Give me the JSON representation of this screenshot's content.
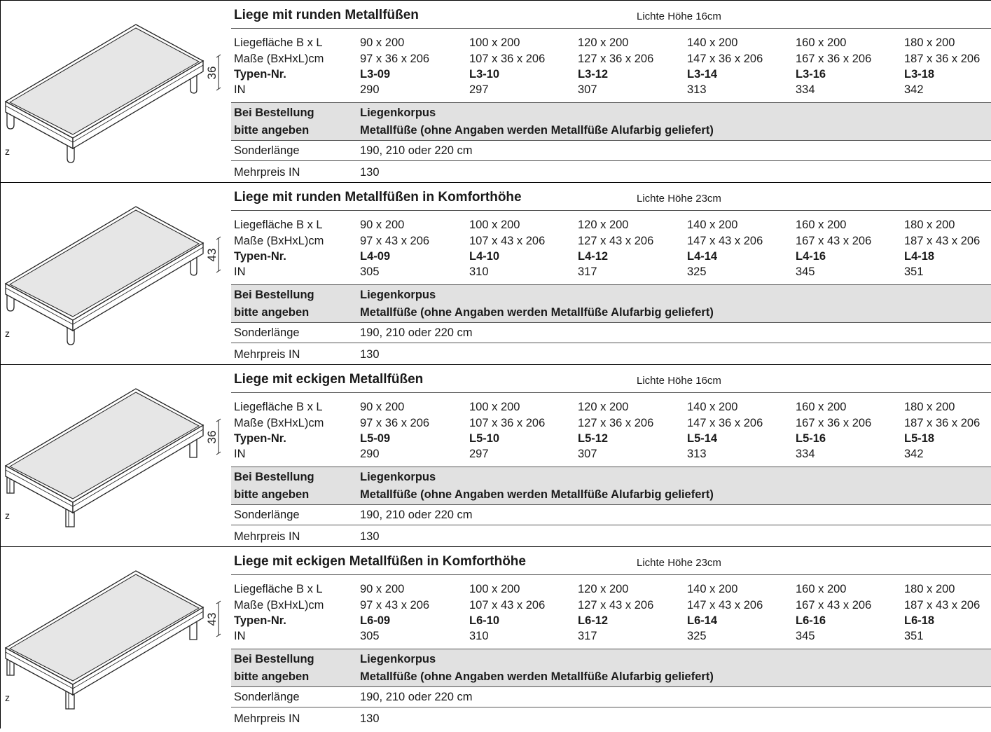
{
  "labels": {
    "liegeflaeche": "Liegefläche B x L",
    "masse": "Maße (BxHxL)cm",
    "typen": "Typen-Nr.",
    "in": "IN",
    "bestellung_1": "Bei Bestellung",
    "bestellung_2": "bitte angeben",
    "sonderlaenge": "Sonderlänge",
    "mehrpreis": "Mehrpreis IN",
    "z": "z"
  },
  "order_info": {
    "line1": "Liegenkorpus",
    "line2": "Metallfüße (ohne Angaben werden Metallfüße Alufarbig geliefert)"
  },
  "sonderlaenge_value": "190, 210 oder 220 cm",
  "mehrpreis_value": "130",
  "liegeflaeche": [
    "90 x 200",
    "100 x 200",
    "120 x 200",
    "140 x 200",
    "160 x 200",
    "180 x 200"
  ],
  "sections": [
    {
      "title": "Liege mit runden Metallfüßen",
      "clearance": "Lichte Höhe 16cm",
      "height": "36",
      "dims": [
        "97 x 36 x 206",
        "107 x 36 x 206",
        "127 x 36 x 206",
        "147 x 36 x 206",
        "167 x 36 x 206",
        "187 x 36 x 206"
      ],
      "types": [
        "L3-09",
        "L3-10",
        "L3-12",
        "L3-14",
        "L3-16",
        "L3-18"
      ],
      "prices": [
        "290",
        "297",
        "307",
        "313",
        "334",
        "342"
      ]
    },
    {
      "title": "Liege mit runden Metallfüßen in Komforthöhe",
      "clearance": "Lichte Höhe 23cm",
      "height": "43",
      "dims": [
        "97 x 43 x 206",
        "107 x 43 x 206",
        "127 x 43 x 206",
        "147 x 43 x 206",
        "167 x 43 x 206",
        "187 x 43 x 206"
      ],
      "types": [
        "L4-09",
        "L4-10",
        "L4-12",
        "L4-14",
        "L4-16",
        "L4-18"
      ],
      "prices": [
        "305",
        "310",
        "317",
        "325",
        "345",
        "351"
      ]
    },
    {
      "title": "Liege mit eckigen Metallfüßen",
      "clearance": "Lichte Höhe 16cm",
      "height": "36",
      "dims": [
        "97 x 36 x 206",
        "107 x 36 x 206",
        "127 x 36 x 206",
        "147 x 36 x 206",
        "167 x 36 x 206",
        "187 x 36 x 206"
      ],
      "types": [
        "L5-09",
        "L5-10",
        "L5-12",
        "L5-14",
        "L5-16",
        "L5-18"
      ],
      "prices": [
        "290",
        "297",
        "307",
        "313",
        "334",
        "342"
      ]
    },
    {
      "title": "Liege mit eckigen Metallfüßen in Komforthöhe",
      "clearance": "Lichte Höhe 23cm",
      "height": "43",
      "dims": [
        "97 x 43 x 206",
        "107 x 43 x 206",
        "127 x 43 x 206",
        "147 x 43 x 206",
        "167 x 43 x 206",
        "187 x 43 x 206"
      ],
      "types": [
        "L6-09",
        "L6-10",
        "L6-12",
        "L6-14",
        "L6-16",
        "L6-18"
      ],
      "prices": [
        "305",
        "310",
        "317",
        "325",
        "345",
        "351"
      ]
    }
  ]
}
